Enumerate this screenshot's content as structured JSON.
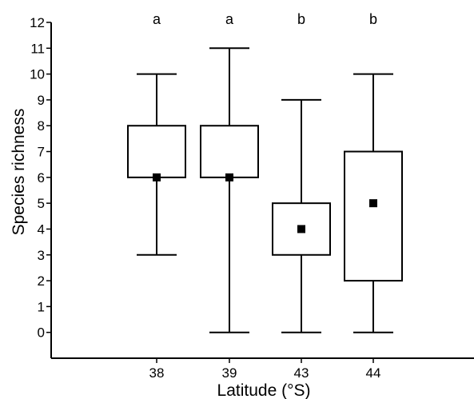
{
  "chart_data": {
    "type": "boxplot",
    "title": "",
    "xlabel": "Latitude (°S)",
    "ylabel": "Species richness",
    "ylim": [
      -1,
      12
    ],
    "yticks": [
      0,
      1,
      2,
      3,
      4,
      5,
      6,
      7,
      8,
      9,
      10,
      11,
      12
    ],
    "categories": [
      "38",
      "39",
      "43",
      "44"
    ],
    "groups": [
      {
        "category": "38",
        "whisker_low": 3,
        "box_low": 6,
        "median": 6,
        "box_high": 8,
        "whisker_high": 10,
        "letter": "a"
      },
      {
        "category": "39",
        "whisker_low": 0,
        "box_low": 6,
        "median": 6,
        "box_high": 8,
        "whisker_high": 11,
        "letter": "a"
      },
      {
        "category": "43",
        "whisker_low": 0,
        "box_low": 3,
        "median": 4,
        "box_high": 5,
        "whisker_high": 9,
        "letter": "b"
      },
      {
        "category": "44",
        "whisker_low": 0,
        "box_low": 2,
        "median": 5,
        "box_high": 7,
        "whisker_high": 10,
        "letter": "b"
      }
    ],
    "grid": false,
    "legend": "none",
    "colors": {
      "box_fill": "#ffffff",
      "stroke": "#000000",
      "median_marker": "#000000"
    }
  }
}
